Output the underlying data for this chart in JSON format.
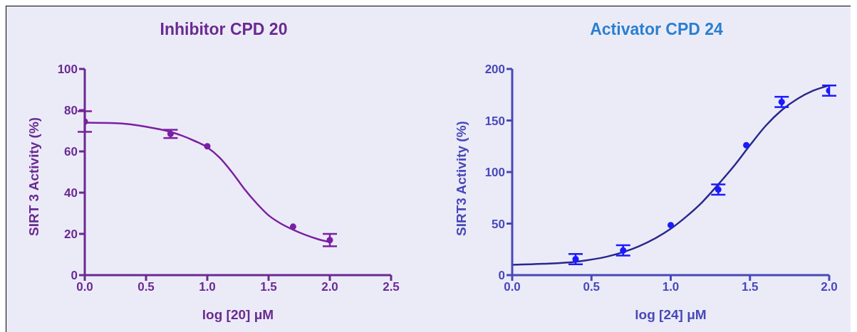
{
  "chart_data": [
    {
      "type": "scatter",
      "title": "Inhibitor CPD 20",
      "xlabel": "log [20] μM",
      "ylabel": "SIRT 3 Activity (%)",
      "xlim": [
        0,
        2.5
      ],
      "xticks": [
        {
          "value": 0,
          "label": "0.0"
        },
        0.5,
        {
          "value": 1,
          "label": "1.0"
        },
        1.5,
        {
          "value": 2,
          "label": "2.0"
        },
        2.5
      ],
      "ylim": [
        0,
        100
      ],
      "yticks": [
        0,
        20,
        40,
        60,
        80,
        100
      ],
      "grid": false,
      "legend": false,
      "series": [
        {
          "marker": "circle",
          "color": "#7b1fa2",
          "x": [
            0,
            0.7,
            1,
            1.7,
            2
          ],
          "values": [
            74.5,
            68.5,
            62.5,
            23.5,
            17
          ],
          "errors": [
            5,
            2,
            null,
            null,
            3
          ]
        },
        {
          "type": "line",
          "marker": "none",
          "color": "#7b1fa2",
          "x": [
            0,
            0.25,
            0.5,
            0.7,
            0.9,
            1.0,
            1.1,
            1.2,
            1.3,
            1.4,
            1.5,
            1.6,
            1.7,
            1.8,
            1.9,
            2.0
          ],
          "values": [
            74,
            73.7,
            72,
            69.5,
            65,
            62,
            57,
            50,
            42,
            35,
            29,
            25,
            22,
            19.5,
            17.5,
            16
          ]
        }
      ]
    },
    {
      "type": "scatter",
      "title": "Activator CPD 24",
      "xlabel": "log [24] μM",
      "ylabel": "SIRT3 Activity (%)",
      "xlim": [
        0,
        2
      ],
      "xticks": [
        {
          "value": 0,
          "label": "0.0"
        },
        0.5,
        {
          "value": 1,
          "label": "1.0"
        },
        1.5,
        {
          "value": 2,
          "label": "2.0"
        }
      ],
      "ylim": [
        0,
        200
      ],
      "yticks": [
        0,
        50,
        100,
        150,
        200
      ],
      "grid": false,
      "legend": false,
      "series": [
        {
          "type": "line",
          "marker": "none",
          "color": "#28288c",
          "x": [
            0,
            0.2,
            0.4,
            0.6,
            0.8,
            1.0,
            1.1,
            1.2,
            1.3,
            1.4,
            1.5,
            1.6,
            1.7,
            1.8,
            1.9,
            2.0
          ],
          "values": [
            10,
            11,
            13,
            18,
            28,
            45,
            57,
            71,
            88,
            106,
            126,
            145,
            160,
            171,
            179,
            184
          ]
        },
        {
          "marker": "circle",
          "color": "#1a1aff",
          "x": [
            0.4,
            0.7,
            1,
            1.3,
            1.477,
            1.7,
            2
          ],
          "values": [
            15.5,
            24,
            48.5,
            83,
            126,
            168,
            179
          ],
          "errors": [
            5,
            5,
            null,
            5,
            null,
            5,
            5
          ]
        }
      ]
    }
  ]
}
